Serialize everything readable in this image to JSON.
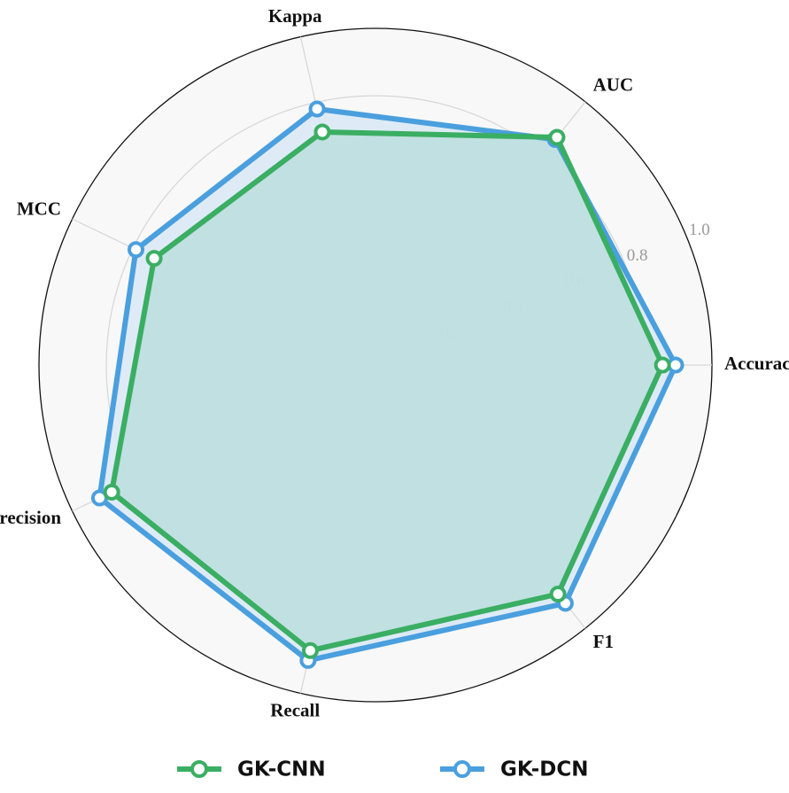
{
  "chart_data": {
    "type": "radar",
    "categories": [
      "Accuracy",
      "AUC",
      "Kappa",
      "MCC",
      "Precision",
      "Recall",
      "F1"
    ],
    "series": [
      {
        "name": "GK-CNN",
        "color": "#3aae63",
        "fill": "#bcdedd",
        "values": [
          0.853,
          0.865,
          0.71,
          0.73,
          0.87,
          0.87,
          0.87
        ]
      },
      {
        "name": "GK-DCN",
        "color": "#4a9fde",
        "fill": "#d9e9f6",
        "values": [
          0.892,
          0.857,
          0.78,
          0.79,
          0.91,
          0.9,
          0.905
        ]
      }
    ],
    "ylim": [
      0,
      1
    ],
    "yticks": [
      0.2,
      0.4,
      0.6,
      0.8,
      {
        "value": 1,
        "label": "1.0"
      }
    ],
    "grid": true,
    "legend": "bottom"
  }
}
